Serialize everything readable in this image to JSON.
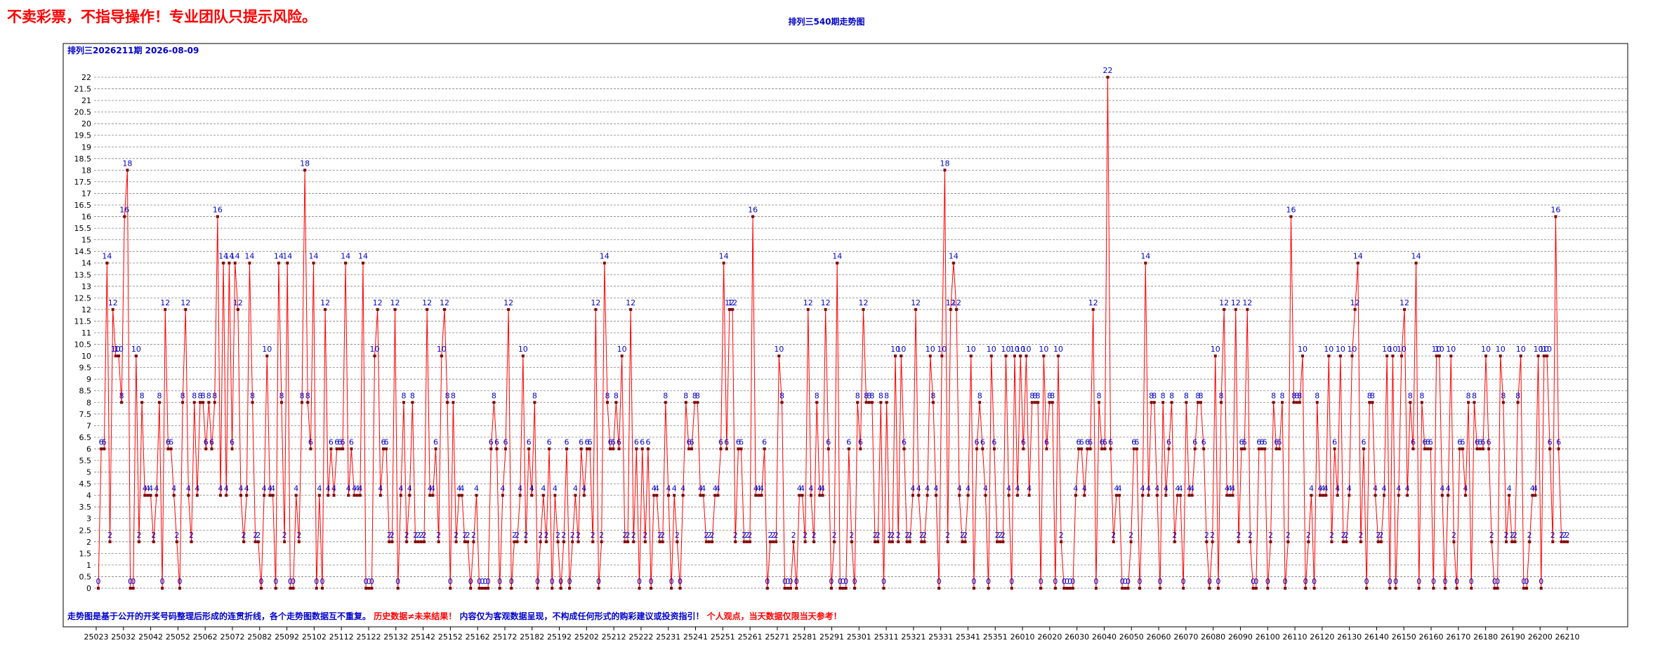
{
  "header": {
    "warning": "不卖彩票，不指导操作！专业团队只提示风险。",
    "title": "排列三540期走势图"
  },
  "colors": {
    "line": "#ff0000",
    "point": "#800000",
    "label": "#0000cc",
    "notice_red": "#ff0000",
    "notice_blue": "#0000cc"
  },
  "chart_data": {
    "type": "line",
    "subtitle": "排列三2026211期  2026-08-09",
    "ylim": [
      0,
      22.5
    ],
    "y_ticks": [
      0,
      0.5,
      1,
      1.5,
      2,
      2.5,
      3,
      3.5,
      4,
      4.5,
      5,
      5.5,
      6,
      6.5,
      7,
      7.5,
      8,
      8.5,
      9,
      9.5,
      10,
      10.5,
      11,
      11.5,
      12,
      12.5,
      13,
      13.5,
      14,
      14.5,
      15,
      15.5,
      16,
      16.5,
      17,
      17.5,
      18,
      18.5,
      19,
      19.5,
      20,
      20.5,
      21,
      21.5,
      22
    ],
    "x_tick_labels": [
      "25023",
      "25032",
      "25042",
      "25052",
      "25062",
      "25072",
      "25082",
      "25092",
      "25102",
      "25112",
      "25122",
      "25132",
      "25142",
      "25152",
      "25162",
      "25172",
      "25182",
      "25192",
      "25202",
      "25212",
      "25222",
      "25231",
      "25241",
      "25251",
      "25261",
      "25271",
      "25281",
      "25291",
      "25301",
      "25311",
      "25321",
      "25331",
      "25341",
      "25351",
      "26010",
      "26020",
      "26030",
      "26040",
      "26050",
      "26060",
      "26070",
      "26080",
      "26090",
      "26100",
      "26110",
      "26120",
      "26130",
      "26140",
      "26150",
      "26160",
      "26170",
      "26180",
      "26190",
      "26200",
      "26210"
    ],
    "grid": true,
    "values": [
      0,
      6,
      6,
      14,
      2,
      12,
      10,
      10,
      8,
      16,
      18,
      0,
      0,
      10,
      2,
      8,
      4,
      4,
      4,
      2,
      4,
      8,
      0,
      12,
      6,
      6,
      4,
      2,
      0,
      8,
      12,
      4,
      2,
      8,
      4,
      8,
      8,
      6,
      8,
      6,
      8,
      16,
      4,
      14,
      4,
      14,
      6,
      14,
      12,
      4,
      2,
      4,
      14,
      8,
      2,
      2,
      0,
      4,
      10,
      4,
      4,
      0,
      14,
      8,
      2,
      14,
      0,
      0,
      4,
      2,
      8,
      18,
      8,
      6,
      14,
      0,
      4,
      0,
      12,
      4,
      6,
      4,
      6,
      6,
      6,
      14,
      4,
      6,
      4,
      4,
      4,
      14,
      0,
      0,
      0,
      10,
      12,
      4,
      6,
      6,
      2,
      2,
      12,
      0,
      4,
      8,
      2,
      4,
      8,
      2,
      2,
      2,
      2,
      12,
      4,
      4,
      6,
      2,
      10,
      12,
      8,
      0,
      8,
      2,
      4,
      4,
      2,
      2,
      0,
      2,
      4,
      0,
      0,
      0,
      0,
      6,
      8,
      6,
      0,
      4,
      6,
      12,
      0,
      2,
      2,
      4,
      10,
      2,
      6,
      4,
      8,
      0,
      2,
      4,
      2,
      6,
      0,
      4,
      2,
      0,
      2,
      6,
      0,
      2,
      4,
      2,
      6,
      4,
      6,
      6,
      2,
      12,
      0,
      2,
      14,
      8,
      6,
      6,
      8,
      6,
      10,
      2,
      2,
      12,
      2,
      6,
      0,
      6,
      2,
      6,
      0,
      4,
      4,
      2,
      2,
      8,
      4,
      0,
      4,
      2,
      0,
      4,
      8,
      6,
      6,
      8,
      8,
      4,
      4,
      2,
      2,
      2,
      4,
      4,
      6,
      14,
      6,
      12,
      12,
      2,
      6,
      6,
      2,
      2,
      2,
      16,
      4,
      4,
      4,
      6,
      0,
      2,
      2,
      2,
      10,
      8,
      0,
      0,
      0,
      2,
      0,
      4,
      4,
      2,
      12,
      4,
      2,
      8,
      4,
      4,
      12,
      6,
      0,
      2,
      14,
      0,
      0,
      0,
      6,
      2,
      0,
      8,
      6,
      12,
      8,
      8,
      8,
      2,
      2,
      8,
      0,
      8,
      2,
      2,
      10,
      2,
      10,
      6,
      2,
      2,
      4,
      12,
      4,
      2,
      2,
      4,
      10,
      8,
      4,
      0,
      10,
      18,
      2,
      12,
      14,
      12,
      4,
      2,
      2,
      4,
      10,
      0,
      6,
      8,
      6,
      4,
      0,
      10,
      6,
      2,
      2,
      2,
      10,
      4,
      0,
      10,
      4,
      10,
      6,
      10,
      4,
      8,
      8,
      8,
      0,
      10,
      6,
      8,
      8,
      0,
      10,
      2,
      0,
      0,
      0,
      0,
      4,
      6,
      6,
      4,
      6,
      6,
      12,
      0,
      8,
      6,
      6,
      22,
      6,
      2,
      4,
      4,
      0,
      0,
      0,
      2,
      6,
      6,
      0,
      4,
      14,
      4,
      8,
      8,
      4,
      0,
      8,
      4,
      6,
      8,
      2,
      4,
      4,
      0,
      8,
      4,
      4,
      6,
      8,
      8,
      6,
      2,
      0,
      2,
      10,
      0,
      8,
      12,
      4,
      4,
      4,
      12,
      2,
      6,
      6,
      12,
      2,
      0,
      0,
      6,
      6,
      6,
      0,
      2,
      8,
      6,
      6,
      8,
      0,
      2,
      16,
      8,
      8,
      8,
      10,
      0,
      2,
      4,
      0,
      8,
      4,
      4,
      4,
      10,
      2,
      6,
      4,
      10,
      2,
      2,
      4,
      10,
      12,
      14,
      2,
      6,
      0,
      8,
      8,
      4,
      2,
      2,
      4,
      10,
      0,
      10,
      0,
      4,
      10,
      12,
      4,
      8,
      6,
      14,
      0,
      8,
      6,
      6,
      6,
      0,
      10,
      10,
      4,
      0,
      4,
      10,
      2,
      0,
      6,
      6,
      4,
      8,
      0,
      8,
      6,
      6,
      6,
      10,
      6,
      2,
      0,
      0,
      10,
      8,
      2,
      4,
      2,
      2,
      8,
      10,
      0,
      0,
      2,
      4,
      4,
      10,
      0,
      10,
      10,
      6,
      2,
      16,
      6,
      2,
      2,
      2
    ]
  },
  "footer": {
    "notice_blue": "走势图是基于公开的开奖号码整理后形成的连贯折线，各个走势图数据互不重复。",
    "notice_red": "历史数据≠未来结果！",
    "notice_blue_2": "内容仅为客观数据呈现，不构成任何形式的购彩建议或投资指引！",
    "notice_red_2": "个人观点，当天数据仅限当天参考！"
  }
}
